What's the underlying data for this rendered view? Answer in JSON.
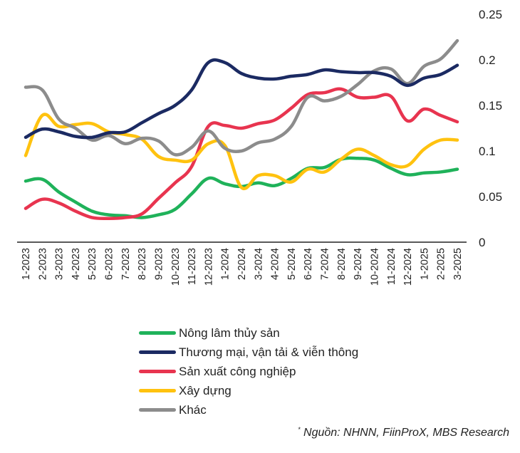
{
  "chart_data": {
    "type": "line",
    "title": "",
    "xlabel": "",
    "ylabel": "",
    "ylim": [
      0,
      0.25
    ],
    "yticks": [
      "0",
      "0.05",
      "0.1",
      "0.15",
      "0.2",
      "0.25"
    ],
    "ytick_values": [
      0,
      0.05,
      0.1,
      0.15,
      0.2,
      0.25
    ],
    "y_axis_position": "right",
    "grid": false,
    "legend_position": "bottom",
    "categories": [
      "1-2023",
      "2-2023",
      "3-2023",
      "4-2023",
      "5-2023",
      "6-2023",
      "7-2023",
      "8-2023",
      "9-2023",
      "10-2023",
      "11-2023",
      "12-2023",
      "1-2024",
      "2-2024",
      "3-2024",
      "4-2024",
      "5-2024",
      "6-2024",
      "7-2024",
      "8-2024",
      "9-2024",
      "10-2024",
      "11-2024",
      "12-2024",
      "1-2025",
      "2-2025",
      "3-2025"
    ],
    "series": [
      {
        "name": "Nông lâm thủy sản",
        "color": "#1fb25a",
        "values": [
          0.067,
          0.069,
          0.055,
          0.044,
          0.034,
          0.03,
          0.029,
          0.027,
          0.03,
          0.036,
          0.053,
          0.07,
          0.064,
          0.061,
          0.065,
          0.062,
          0.07,
          0.081,
          0.082,
          0.091,
          0.092,
          0.09,
          0.081,
          0.074,
          0.076,
          0.077,
          0.08
        ]
      },
      {
        "name": "Thương mại, vận tải & viễn thông",
        "color": "#1b2a62",
        "values": [
          0.115,
          0.124,
          0.121,
          0.116,
          0.115,
          0.12,
          0.121,
          0.131,
          0.141,
          0.15,
          0.167,
          0.197,
          0.197,
          0.185,
          0.18,
          0.179,
          0.182,
          0.184,
          0.189,
          0.187,
          0.186,
          0.186,
          0.182,
          0.172,
          0.18,
          0.184,
          0.194
        ]
      },
      {
        "name": "Sản xuất công nghiệp",
        "color": "#e8344f",
        "values": [
          0.037,
          0.047,
          0.043,
          0.034,
          0.027,
          0.026,
          0.027,
          0.031,
          0.048,
          0.065,
          0.083,
          0.127,
          0.128,
          0.125,
          0.13,
          0.134,
          0.147,
          0.162,
          0.164,
          0.168,
          0.159,
          0.159,
          0.16,
          0.133,
          0.146,
          0.139,
          0.132
        ]
      },
      {
        "name": "Xây dựng",
        "color": "#ffc20f",
        "values": [
          0.095,
          0.139,
          0.127,
          0.129,
          0.13,
          0.121,
          0.118,
          0.113,
          0.094,
          0.09,
          0.09,
          0.108,
          0.106,
          0.06,
          0.073,
          0.073,
          0.066,
          0.08,
          0.077,
          0.091,
          0.102,
          0.095,
          0.085,
          0.084,
          0.102,
          0.112,
          0.112
        ]
      },
      {
        "name": "Khác",
        "color": "#8c8c8c",
        "values": [
          0.17,
          0.167,
          0.135,
          0.125,
          0.112,
          0.117,
          0.108,
          0.114,
          0.111,
          0.096,
          0.104,
          0.122,
          0.103,
          0.1,
          0.109,
          0.113,
          0.127,
          0.159,
          0.155,
          0.16,
          0.173,
          0.188,
          0.19,
          0.174,
          0.193,
          0.201,
          0.221
        ]
      }
    ]
  },
  "source": {
    "marker": "*",
    "text": "Nguồn: NHNN, FiinProX, MBS Research"
  }
}
